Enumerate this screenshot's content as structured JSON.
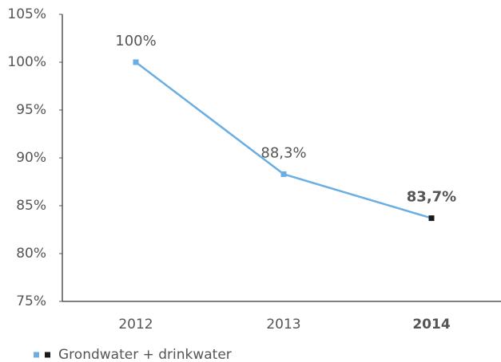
{
  "chart_data": {
    "type": "line",
    "categories": [
      "2012",
      "2013",
      "2014"
    ],
    "series": [
      {
        "name": "Grondwater + drinkwater",
        "color": "#6aaee2",
        "marker_colors": [
          "#6aaee2",
          "#6aaee2",
          "#1a1a1a"
        ],
        "values": [
          100,
          88.3,
          83.7
        ],
        "value_labels": [
          "100%",
          "88,3%",
          "83,7%"
        ]
      }
    ],
    "highlight_index": 2,
    "ylim": [
      75,
      105
    ],
    "yticks": [
      {
        "value": 75,
        "label": "75%"
      },
      {
        "value": 80,
        "label": "80%"
      },
      {
        "value": 85,
        "label": "85%"
      },
      {
        "value": 90,
        "label": "90%"
      },
      {
        "value": 95,
        "label": "95%"
      },
      {
        "value": 100,
        "label": "100%"
      },
      {
        "value": 105,
        "label": "105%"
      }
    ],
    "grid": false,
    "legend": "bottom-left"
  }
}
